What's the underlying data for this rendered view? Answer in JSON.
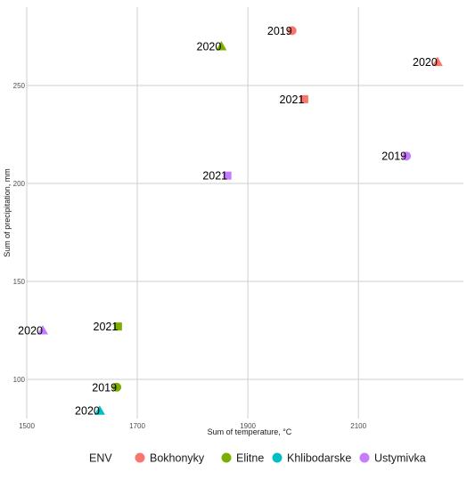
{
  "chart_data": {
    "type": "scatter",
    "xlabel": "Sum of temperature, °C",
    "ylabel": "Sum of precipitation, mm",
    "xlim": [
      1500,
      2290
    ],
    "ylim": [
      80,
      290
    ],
    "x_ticks": [
      1500,
      1700,
      1900,
      2100
    ],
    "y_ticks": [
      100,
      150,
      200,
      250
    ],
    "grid": true,
    "legend_title": "ENV",
    "legend_position": "bottom",
    "colors": {
      "Bokhonyky": "#F8766D",
      "Elitne": "#7CAE00",
      "Khlibodarske": "#00BFC4",
      "Ustymivka": "#C77CFF"
    },
    "shapes": {
      "2019": "circle",
      "2020": "triangle",
      "2021": "square"
    },
    "series": [
      {
        "name": "Bokhonyky",
        "points": [
          {
            "x": 1980,
            "y": 278,
            "year": "2019"
          },
          {
            "x": 2243,
            "y": 262,
            "year": "2020"
          },
          {
            "x": 2002,
            "y": 243,
            "year": "2021"
          }
        ]
      },
      {
        "name": "Elitne",
        "points": [
          {
            "x": 1663,
            "y": 96,
            "year": "2019"
          },
          {
            "x": 1852,
            "y": 270,
            "year": "2020"
          },
          {
            "x": 1665,
            "y": 127,
            "year": "2021"
          }
        ]
      },
      {
        "name": "Khlibodarske",
        "points": [
          {
            "x": 1632,
            "y": 84,
            "year": "2020"
          }
        ]
      },
      {
        "name": "Ustymivka",
        "points": [
          {
            "x": 2187,
            "y": 214,
            "year": "2019"
          },
          {
            "x": 1529,
            "y": 125,
            "year": "2020"
          },
          {
            "x": 1863,
            "y": 204,
            "year": "2021"
          }
        ]
      }
    ]
  }
}
